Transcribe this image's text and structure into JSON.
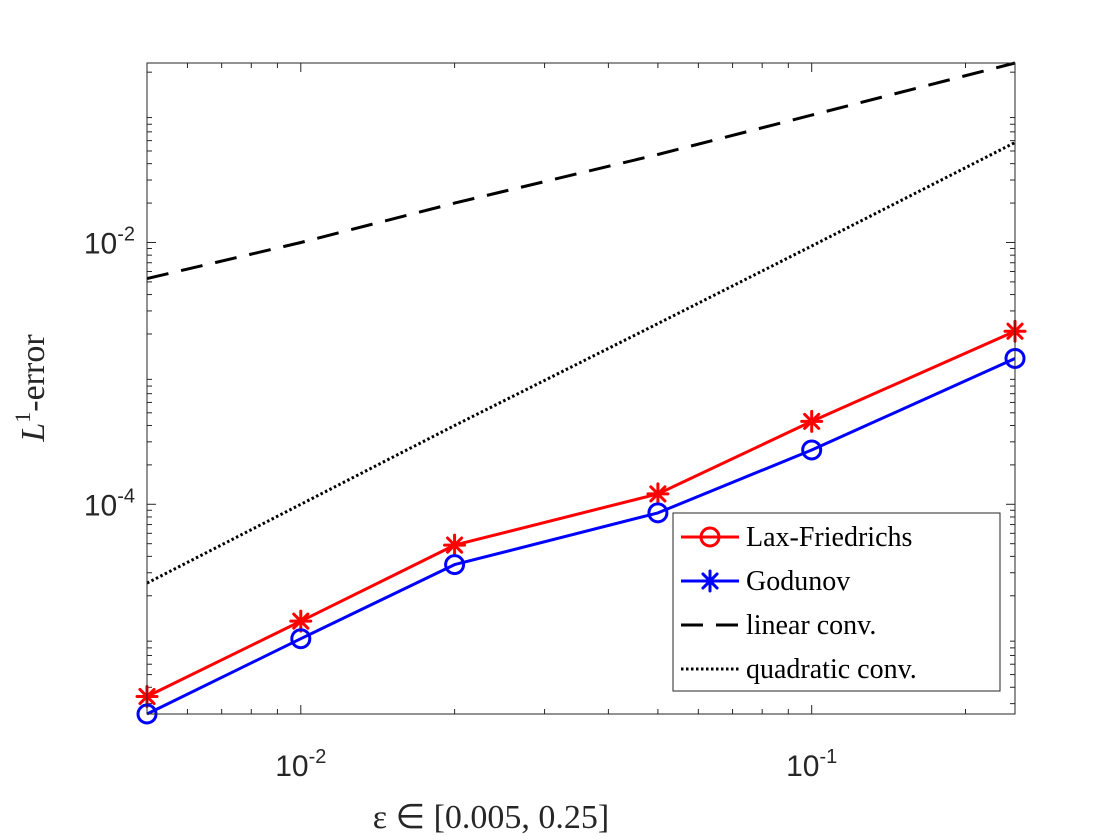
{
  "chart_data": {
    "type": "line",
    "xscale": "log",
    "yscale": "log",
    "xlim": [
      0.005,
      0.25
    ],
    "ylim": [
      2.5e-06,
      0.235
    ],
    "xlabel": "ε ∈ [0.005, 0.25]",
    "ylabel_main": "L",
    "ylabel_sup": "1",
    "ylabel_rest": "-error",
    "legend_position": "bottom-right",
    "x": [
      0.005,
      0.01,
      0.02,
      0.05,
      0.1,
      0.25
    ],
    "series": [
      {
        "name": "Lax-Friedrichs",
        "legend_marker": "circle",
        "point_marker": "asterisk",
        "color": "#ff0000",
        "style": "solid",
        "values": [
          3.4e-06,
          1.28e-05,
          4.88e-05,
          0.00012,
          0.00043,
          0.0021
        ]
      },
      {
        "name": "Godunov",
        "legend_marker": "asterisk",
        "point_marker": "circle",
        "color": "#0000ff",
        "style": "solid",
        "values": [
          2.5e-06,
          9.4e-06,
          3.46e-05,
          8.6e-05,
          0.00026,
          0.0013
        ]
      },
      {
        "name": "linear conv.",
        "legend_marker": "none",
        "point_marker": "none",
        "color": "#000000",
        "style": "dashed",
        "values": [
          0.0053,
          0.01,
          0.02,
          0.047,
          0.094,
          0.235
        ]
      },
      {
        "name": "quadratic conv.",
        "legend_marker": "none",
        "point_marker": "none",
        "color": "#000000",
        "style": "dotted",
        "values": [
          2.5e-05,
          0.0001,
          0.0004,
          0.0024,
          0.0094,
          0.058
        ]
      }
    ],
    "xticks": [
      {
        "value": 0.01,
        "base": "10",
        "exp": "-2"
      },
      {
        "value": 0.1,
        "base": "10",
        "exp": "-1"
      }
    ],
    "yticks": [
      {
        "value": 0.0001,
        "base": "10",
        "exp": "-4"
      },
      {
        "value": 0.01,
        "base": "10",
        "exp": "-2"
      }
    ]
  }
}
